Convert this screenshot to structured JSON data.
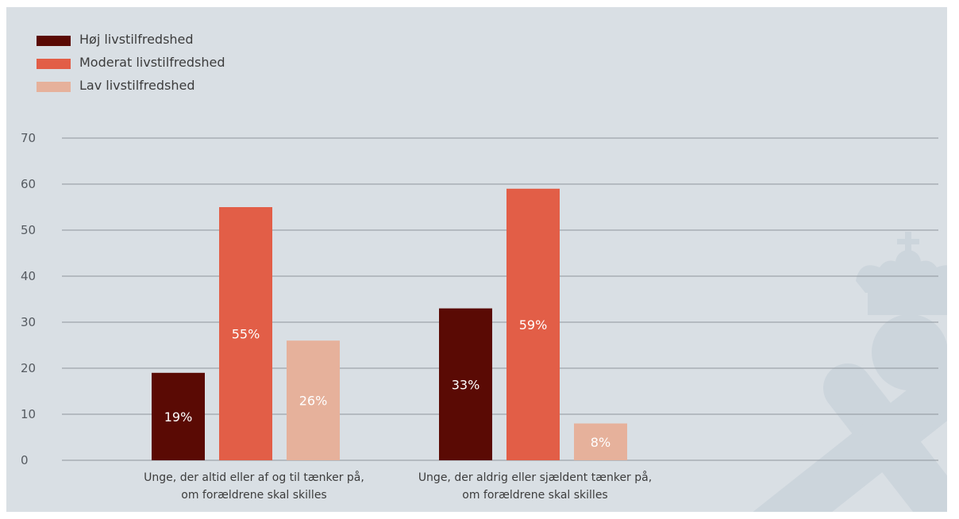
{
  "colors": {
    "background": "#d9dfe4",
    "grid": "#8e959b",
    "watermark": "#ccd5dc"
  },
  "icons": {
    "watermark": "crown-emblem-icon"
  },
  "chart_data": {
    "type": "bar",
    "categories": [
      [
        "Unge, der altid eller af og til tænker på,",
        "om forældrene skal skilles"
      ],
      [
        "Unge, der aldrig eller sjældent tænker på,",
        "om forældrene skal skilles"
      ]
    ],
    "series": [
      {
        "name": "Høj livstilfredshed",
        "color": "#5a0a04",
        "values": [
          19,
          33
        ],
        "labels": [
          "19%",
          "33%"
        ]
      },
      {
        "name": "Moderat livstilfredshed",
        "color": "#e25e47",
        "values": [
          55,
          59
        ],
        "labels": [
          "55%",
          "59%"
        ]
      },
      {
        "name": "Lav livstilfredshed",
        "color": "#e6b19b",
        "values": [
          26,
          8
        ],
        "labels": [
          "26%",
          "8%"
        ]
      }
    ],
    "ylim": [
      0,
      70
    ],
    "yticks": [
      "0",
      "10",
      "20",
      "30",
      "40",
      "50",
      "60",
      "70"
    ],
    "grid": true,
    "legend_position": "top-left",
    "title": "",
    "xlabel": "",
    "ylabel": ""
  }
}
